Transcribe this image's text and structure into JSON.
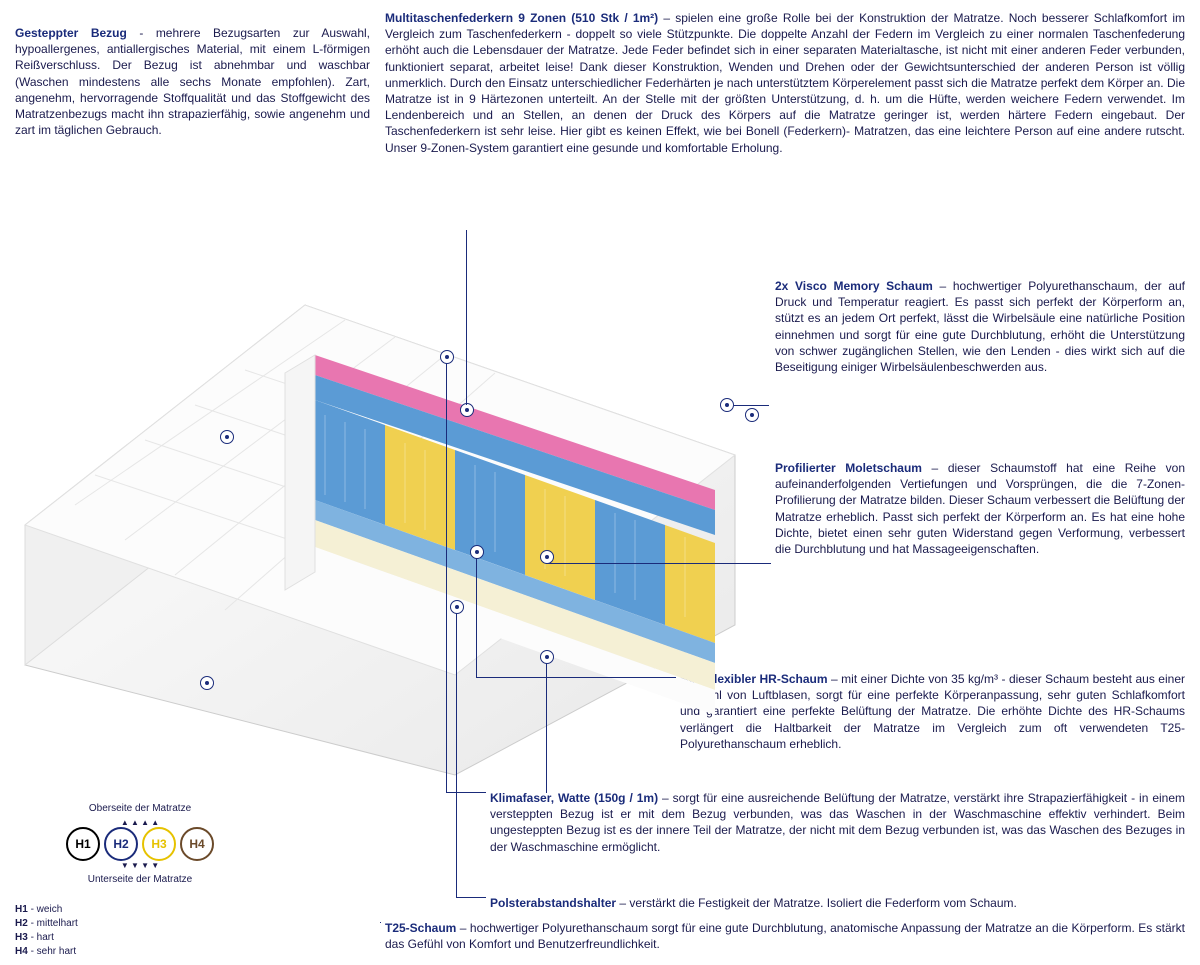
{
  "colors": {
    "title": "#1a2b7a",
    "body": "#1a1a4d",
    "h1": "#000000",
    "h2": "#1a2b7a",
    "h3": "#e6c200",
    "h4": "#6b4a2a",
    "foam_pink": "#e876b0",
    "foam_blue": "#5b9bd5",
    "foam_yellow": "#f0d050",
    "foam_cream": "#f5f0d5",
    "foam_white": "#f8f8f8"
  },
  "sections": {
    "bezug": {
      "title": "Gesteppter Bezug",
      "sep": " - ",
      "body": "mehrere Bezugsarten zur Auswahl, hypoallergenes, antiallergisches Material, mit einem L-förmigen Reißverschluss. Der Bezug ist abnehmbar und waschbar (Waschen mindestens alle sechs Monate empfohlen). Zart, angenehm, hervorragende Stoffqualität und das Stoffgewicht des Matratzenbezugs macht ihn strapazierfähig, sowie angenehm und zart im täglichen Gebrauch."
    },
    "federkern": {
      "title": "Multitaschenfederkern 9 Zonen (510 Stk / 1m²)",
      "sep": " – ",
      "body": "spielen eine große Rolle bei der Konstruktion der Matratze. Noch besserer Schlafkomfort im Vergleich zum Taschenfederkern - doppelt so viele Stützpunkte. Die doppelte Anzahl der Federn im Vergleich zu einer normalen Taschenfederung erhöht auch die Lebensdauer der Matratze. Jede Feder befindet sich in einer separaten Materialtasche, ist nicht mit einer anderen Feder verbunden, funktioniert separat, arbeitet leise! Dank dieser Konstruktion, Wenden und Drehen oder der Gewichtsunterschied der anderen Person ist völlig unmerklich. Durch den Einsatz unterschiedlicher Federhärten je nach unterstütztem Körperelement passt sich die Matratze perfekt dem Körper an. Die Matratze ist in 9 Härtezonen unterteilt. An der Stelle mit der größten Unterstützung, d. h. um die Hüfte, werden weichere Federn verwendet. Im Lendenbereich und an Stellen, an denen der Druck des Körpers auf die Matratze geringer ist, werden härtere Federn eingebaut. Der Taschenfederkern ist sehr leise. Hier gibt es keinen Effekt, wie bei Bonell (Federkern)- Matratzen, das eine leichtere Person auf eine andere rutscht. Unser 9-Zonen-System garantiert eine gesunde und komfortable Erholung."
    },
    "visco": {
      "title": "2x Visco Memory Schaum",
      "sep": " – ",
      "body": "hochwertiger Polyurethanschaum, der auf Druck und Temperatur reagiert. Es passt sich perfekt der Körperform an, stützt es an jedem Ort perfekt, lässt die Wirbelsäule eine natürliche Position einnehmen und sorgt für eine gute Durchblutung, erhöht die Unterstützung von schwer zugänglichen Stellen, wie den Lenden - dies wirkt sich auf die Beseitigung einiger Wirbelsäulenbeschwerden aus."
    },
    "molet": {
      "title": "Profilierter Moletschaum",
      "sep": " – ",
      "body": "dieser Schaumstoff hat eine Reihe von aufeinanderfolgenden Vertiefungen und Vorsprüngen, die die 7-Zonen-Profilierung der Matratze bilden. Dieser Schaum verbessert die Belüftung der Matratze erheblich. Passt sich perfekt der Körperform an. Es hat eine hohe Dichte, bietet einen sehr guten Widerstand gegen Verformung, verbessert die Durchblutung und hat Massageeigenschaften."
    },
    "hr": {
      "title": "Hochflexibler HR-Schaum",
      "sep": " – ",
      "body": "mit einer Dichte von 35 kg/m³ - dieser Schaum besteht aus einer Vielzahl von Luftblasen, sorgt für eine perfekte Körperanpassung, sehr guten Schlafkomfort und garantiert eine perfekte Belüftung der Matratze. Die erhöhte Dichte des HR-Schaums verlängert die Haltbarkeit der Matratze im Vergleich zum oft verwendeten T25-Polyurethanschaum erheblich."
    },
    "klima": {
      "title": "Klimafaser, Watte (150g / 1m)",
      "sep": " – ",
      "body": "sorgt für eine ausreichende Belüftung der Matratze, verstärkt ihre Strapazierfähigkeit - in einem versteppten Bezug ist er mit dem Bezug verbunden, was das Waschen in der Waschmaschine effektiv verhindert. Beim ungesteppten Bezug ist es der innere Teil der Matratze, der nicht mit dem Bezug verbunden ist, was das Waschen des Bezuges in der Waschmaschine ermöglicht."
    },
    "polster": {
      "title": "Polsterabstandshalter",
      "sep": " – ",
      "body": "verstärkt die Festigkeit der Matratze. Isoliert die Federform vom Schaum."
    },
    "t25": {
      "title": "T25-Schaum",
      "sep": " – ",
      "body": "hochwertiger Polyurethanschaum sorgt für eine gute Durchblutung, anatomische Anpassung der Matratze an die Körperform. Es stärkt das Gefühl von Komfort und Benutzerfreundlichkeit."
    }
  },
  "legend": {
    "top": "Oberseite der Matratze",
    "bottom": "Unterseite der Matratze",
    "circles": [
      {
        "label": "H1",
        "color": "#000000"
      },
      {
        "label": "H2",
        "color": "#1a2b7a"
      },
      {
        "label": "H3",
        "color": "#e6c200"
      },
      {
        "label": "H4",
        "color": "#6b4a2a"
      }
    ],
    "list": [
      {
        "k": "H1",
        "v": "weich"
      },
      {
        "k": "H2",
        "v": "mittelhart"
      },
      {
        "k": "H3",
        "v": "hart"
      },
      {
        "k": "H4",
        "v": "sehr hart"
      }
    ]
  }
}
